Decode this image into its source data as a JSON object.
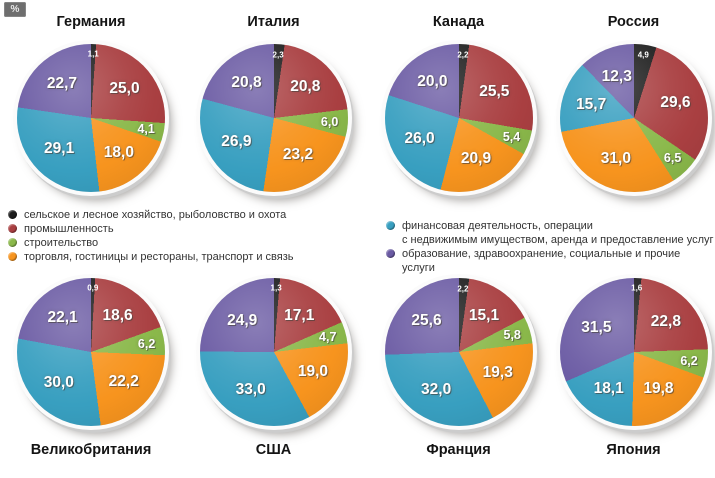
{
  "unit_badge": "%",
  "legend": {
    "left": [
      {
        "color": "#1c1c1c",
        "lines": [
          "сельское и лесное хозяйство, рыболовство и охота"
        ]
      },
      {
        "color": "#a93f41",
        "lines": [
          "промышленность"
        ]
      },
      {
        "color": "#8ab84a",
        "lines": [
          "строительство"
        ]
      },
      {
        "color": "#f7941e",
        "lines": [
          "торговля, гостиницы и рестораны, транспорт и связь"
        ]
      }
    ],
    "right": [
      {
        "color": "#389fc0",
        "lines": [
          "финансовая деятельность, операции",
          "с недвижимым имуществом, аренда и предоставление услуг"
        ]
      },
      {
        "color": "#6a5aa3",
        "lines": [
          "образование, здравоохранение, социальные и прочие услуги"
        ]
      }
    ]
  },
  "chart_data": {
    "type": "pie",
    "value_unit": "%",
    "decimal_separator": ",",
    "slice_order": "clockwise-from-12-o-clock",
    "categories": [
      "сельское и лесное хозяйство, рыболовство и охота",
      "промышленность",
      "строительство",
      "торговля, гостиницы и рестораны, транспорт и связь",
      "финансовая деятельность, операции с недвижимым имуществом, аренда и предоставление услуг",
      "образование, здравоохранение, социальные и прочие услуги"
    ],
    "series_colors": [
      "#1c1c1c",
      "#a93f41",
      "#8ab84a",
      "#f7941e",
      "#389fc0",
      "#6a5aa3"
    ],
    "charts": [
      {
        "title": "Германия",
        "row": "top",
        "values": [
          1.1,
          25.0,
          4.1,
          18.0,
          29.1,
          22.7
        ]
      },
      {
        "title": "Италия",
        "row": "top",
        "values": [
          2.3,
          20.8,
          6.0,
          23.2,
          26.9,
          20.8
        ]
      },
      {
        "title": "Канада",
        "row": "top",
        "values": [
          2.2,
          25.5,
          5.4,
          20.9,
          26.0,
          20.0
        ]
      },
      {
        "title": "Россия",
        "row": "top",
        "values": [
          4.9,
          29.6,
          6.5,
          31.0,
          15.7,
          12.3
        ]
      },
      {
        "title": "Великобритания",
        "row": "bottom",
        "values": [
          0.9,
          18.6,
          6.2,
          22.2,
          30.0,
          22.1
        ]
      },
      {
        "title": "США",
        "row": "bottom",
        "values": [
          1.3,
          17.1,
          4.7,
          19.0,
          33.0,
          24.9
        ]
      },
      {
        "title": "Франция",
        "row": "bottom",
        "values": [
          2.2,
          15.1,
          5.8,
          19.3,
          32.0,
          25.6
        ]
      },
      {
        "title": "Япония",
        "row": "bottom",
        "values": [
          1.6,
          22.8,
          6.2,
          19.8,
          18.1,
          31.5
        ]
      }
    ]
  }
}
